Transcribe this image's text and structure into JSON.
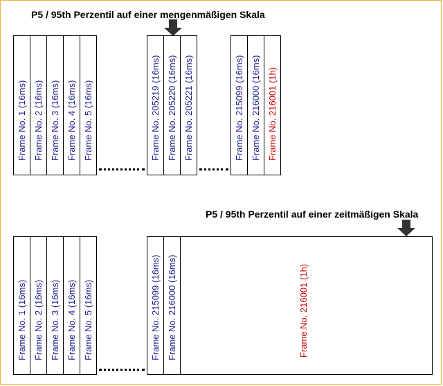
{
  "top": {
    "title": "P5 / 95th Perzentil auf einer mengenmäßigen Skala",
    "frames": [
      {
        "label": "Frame No. 1 (16ms)"
      },
      {
        "label": "Frame No. 2 (16ms)"
      },
      {
        "label": "Frame No. 3 (16ms)"
      },
      {
        "label": "Frame No. 4 (16ms)"
      },
      {
        "label": "Frame No. 5 (16ms)"
      },
      {
        "label": "Frame No. 205219 (16ms)"
      },
      {
        "label": "Frame No. 205220 (16ms)"
      },
      {
        "label": "Frame No. 205221 (16ms)"
      },
      {
        "label": "Frame No. 215099 (16ms)"
      },
      {
        "label": "Frame No. 216000 (16ms)"
      },
      {
        "label": "Frame No. 216001 (1h)"
      }
    ]
  },
  "bottom": {
    "title": "P5 / 95th Perzentil auf einer zeitmäßigen Skala",
    "frames": [
      {
        "label": "Frame No. 1 (16ms)"
      },
      {
        "label": "Frame No. 2 (16ms)"
      },
      {
        "label": "Frame No. 3 (16ms)"
      },
      {
        "label": "Frame No. 4 (16ms)"
      },
      {
        "label": "Frame No. 5 (16ms)"
      },
      {
        "label": "Frame No. 215099 (16ms)"
      },
      {
        "label": "Frame No. 216000 (16ms)"
      },
      {
        "label": "Frame No. 216001 (1h)"
      }
    ]
  },
  "colors": {
    "frame_text": "#1a1a8c",
    "highlight_text": "#cc0000",
    "border": "#f5b041"
  },
  "icons": {
    "percentile_marker": "down-arrow-icon"
  }
}
